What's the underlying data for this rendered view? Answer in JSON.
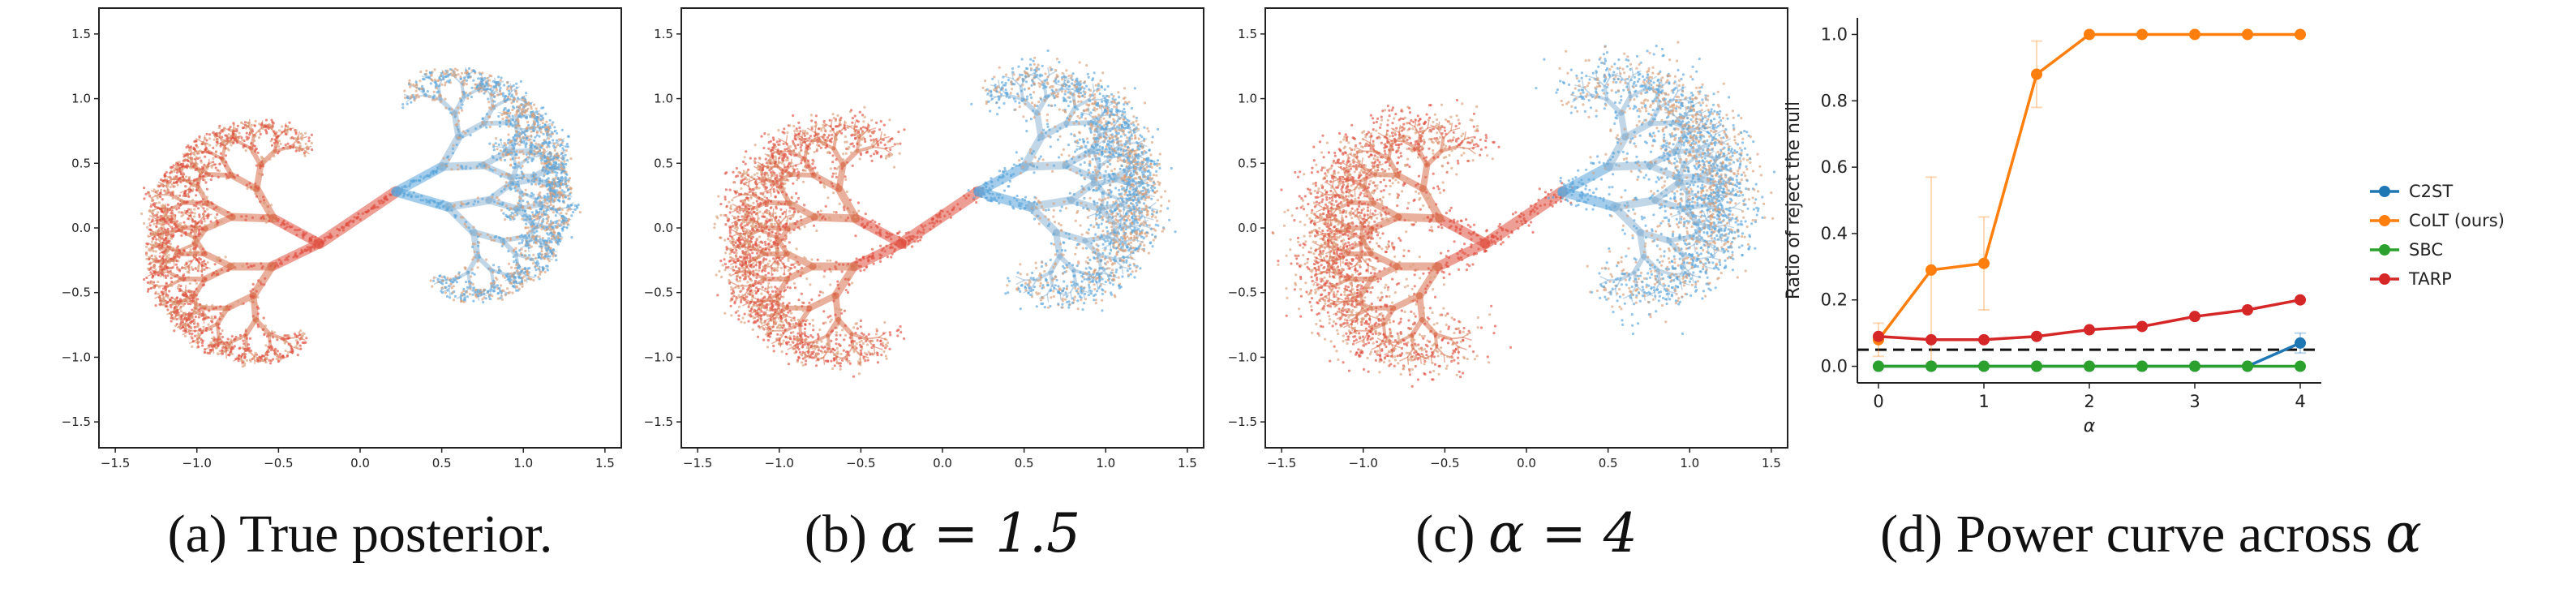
{
  "panels": [
    {
      "id": "a",
      "caption": "(a) True posterior.",
      "x_ticks": [
        "−1.5",
        "−1.0",
        "−0.5",
        "0.0",
        "0.5",
        "1.0",
        "1.5"
      ],
      "y_ticks": [
        "1.5",
        "1.0",
        "0.5",
        "0.0",
        "−0.5",
        "−1.0",
        "−1.5"
      ],
      "spread": 0.01
    },
    {
      "id": "b",
      "caption_prefix": "(b) ",
      "caption_math": "α = 1.5",
      "x_ticks": [
        "−1.5",
        "−1.0",
        "−0.5",
        "0.0",
        "0.5",
        "1.0",
        "1.5"
      ],
      "y_ticks": [
        "1.5",
        "1.0",
        "0.5",
        "0.0",
        "−0.5",
        "−1.0",
        "−1.5"
      ],
      "spread": 0.028
    },
    {
      "id": "c",
      "caption_prefix": "(c) ",
      "caption_math": "α = 4",
      "x_ticks": [
        "−1.5",
        "−1.0",
        "−0.5",
        "0.0",
        "0.5",
        "1.0",
        "1.5"
      ],
      "y_ticks": [
        "1.5",
        "1.0",
        "0.5",
        "0.0",
        "−0.5",
        "−1.0",
        "−1.5"
      ],
      "spread": 0.05
    }
  ],
  "colors": {
    "red_points": "#e05040",
    "blue_points": "#5aa6dc",
    "tan_branch": "#d9a07a"
  },
  "power_caption_prefix": "(d) Power curve across ",
  "power_caption_math": "α",
  "chart_data": {
    "type": "line",
    "title": "",
    "xlabel": "α",
    "ylabel": "Ratio of reject the null",
    "xlim": [
      -0.2,
      4.2
    ],
    "ylim": [
      -0.05,
      1.05
    ],
    "x_ticks": [
      0,
      1,
      2,
      3,
      4
    ],
    "y_ticks": [
      0.0,
      0.2,
      0.4,
      0.6,
      0.8,
      1.0
    ],
    "x_tick_labels": [
      "0",
      "1",
      "2",
      "3",
      "4"
    ],
    "y_tick_labels": [
      "0.0",
      "0.2",
      "0.4",
      "0.6",
      "0.8",
      "1.0"
    ],
    "x": [
      0,
      0.5,
      1,
      1.5,
      2,
      2.5,
      3,
      3.5,
      4
    ],
    "reference_line": 0.05,
    "legend_position": "right, outside",
    "series": [
      {
        "name": "C2ST",
        "color": "#1f77b4",
        "values": [
          0,
          0,
          0,
          0,
          0,
          0,
          0,
          0,
          0.07
        ],
        "err": [
          0,
          0,
          0,
          0,
          0,
          0,
          0,
          0,
          0.03
        ]
      },
      {
        "name": "CoLT (ours)",
        "color": "#ff7f0e",
        "values": [
          0.08,
          0.29,
          0.31,
          0.88,
          1.0,
          1.0,
          1.0,
          1.0,
          1.0
        ],
        "err": [
          0.05,
          0.28,
          0.14,
          0.1,
          0,
          0,
          0,
          0,
          0
        ]
      },
      {
        "name": "SBC",
        "color": "#2ca02c",
        "values": [
          0,
          0,
          0,
          0,
          0,
          0,
          0,
          0,
          0
        ],
        "err": [
          0,
          0,
          0,
          0,
          0,
          0,
          0,
          0,
          0
        ]
      },
      {
        "name": "TARP",
        "color": "#d62728",
        "values": [
          0.09,
          0.08,
          0.08,
          0.09,
          0.11,
          0.12,
          0.15,
          0.17,
          0.2
        ],
        "err": [
          0,
          0,
          0,
          0,
          0,
          0,
          0,
          0,
          0
        ]
      }
    ]
  }
}
